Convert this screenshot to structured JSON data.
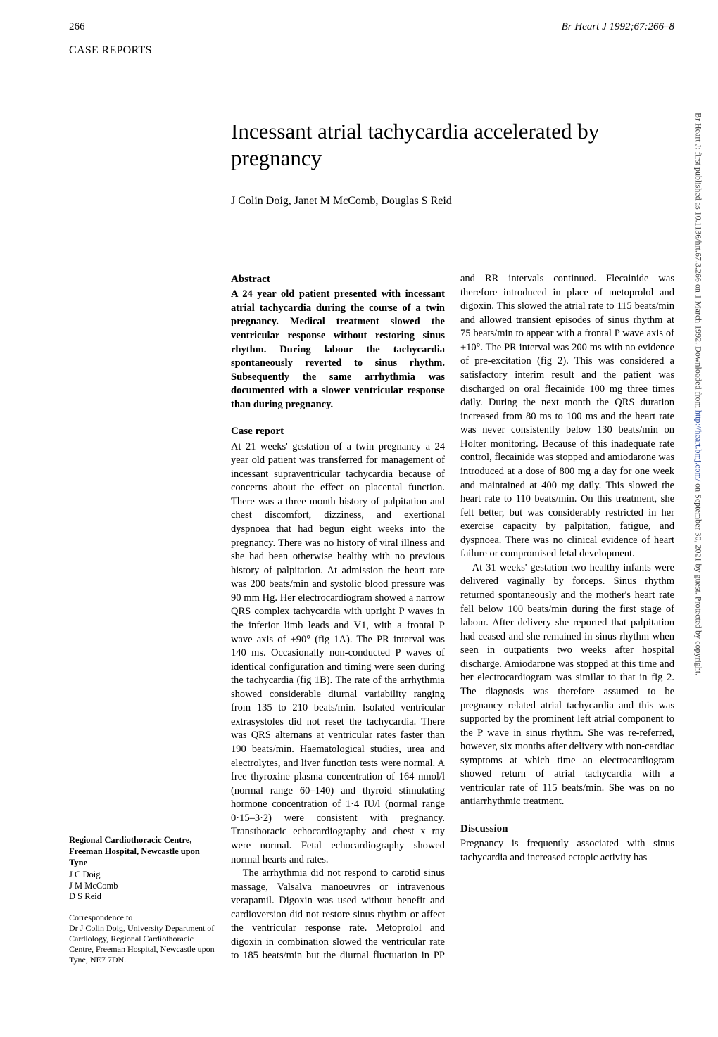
{
  "header": {
    "page_number": "266",
    "journal_citation": "Br Heart J 1992;67:266–8"
  },
  "section_label": "CASE REPORTS",
  "title": "Incessant atrial tachycardia accelerated by pregnancy",
  "authors": "J Colin Doig, Janet M McComb, Douglas S Reid",
  "abstract_heading": "Abstract",
  "abstract_text": "A 24 year old patient presented with incessant atrial tachycardia during the course of a twin pregnancy. Medical treatment slowed the ventricular response without restoring sinus rhythm. During labour the tachycardia spontaneously reverted to sinus rhythm. Subsequently the same arrhythmia was documented with a slower ventricular response than during pregnancy.",
  "case_heading": "Case report",
  "case_p1": "At 21 weeks' gestation of a twin pregnancy a 24 year old patient was transferred for management of incessant supraventricular tachycardia because of concerns about the effect on placental function. There was a three month history of palpitation and chest discomfort, dizziness, and exertional dyspnoea that had begun eight weeks into the pregnancy. There was no history of viral illness and she had been otherwise healthy with no previous history of palpitation. At admission the heart rate was 200 beats/min and systolic blood pressure was 90 mm Hg. Her electrocardiogram showed a narrow QRS complex tachycardia with upright P waves in the inferior limb leads and V1, with a frontal P wave axis of +90° (fig 1A). The PR interval was 140 ms. Occasionally non-conducted P waves of identical configuration and timing were seen during the tachycardia (fig 1B). The rate of the arrhythmia showed considerable diurnal variability ranging from 135 to 210 beats/min. Isolated ventricular extrasystoles did not reset the tachycardia. There was QRS alternans at ventricular rates faster than 190 beats/min. Haematological studies, urea and electrolytes, and liver function tests were normal. A free thyroxine plasma concentration of 164 nmol/l (normal range 60–140) and thyroid stimulating hormone concentration of 1·4 IU/l (normal range 0·15–3·2) were consistent with pregnancy. Transthoracic echocardiography and chest x ray were normal. Fetal echocardiography showed normal hearts and rates.",
  "case_p2": "The arrhythmia did not respond to carotid sinus massage, Valsalva manoeuvres or intravenous verapamil. Digoxin was used without benefit and cardioversion did not restore sinus rhythm or affect the ventricular response rate. Metoprolol and digoxin in combination slowed the ventricular rate to 185 beats/min but the diurnal fluctuation in PP and RR intervals continued. Flecainide was therefore introduced in place of metoprolol and digoxin. This slowed the atrial rate to 115 beats/min and allowed transient episodes of sinus rhythm at 75 beats/min to appear with a frontal P wave axis of +10°. The PR interval was 200 ms with no evidence of pre-excitation (fig 2). This was considered a satisfactory interim result and the patient was discharged on oral flecainide 100 mg three times daily. During the next month the QRS duration increased from 80 ms to 100 ms and the heart rate was never consistently below 130 beats/min on Holter monitoring. Because of this inadequate rate control, flecainide was stopped and amiodarone was introduced at a dose of 800 mg a day for one week and maintained at 400 mg daily. This slowed the heart rate to 110 beats/min. On this treatment, she felt better, but was considerably restricted in her exercise capacity by palpitation, fatigue, and dyspnoea. There was no clinical evidence of heart failure or compromised fetal development.",
  "case_p3": "At 31 weeks' gestation two healthy infants were delivered vaginally by forceps. Sinus rhythm returned spontaneously and the mother's heart rate fell below 100 beats/min during the first stage of labour. After delivery she reported that palpitation had ceased and she remained in sinus rhythm when seen in outpatients two weeks after hospital discharge. Amiodarone was stopped at this time and her electrocardiogram was similar to that in fig 2. The diagnosis was therefore assumed to be pregnancy related atrial tachycardia and this was supported by the prominent left atrial component to the P wave in sinus rhythm. She was re-referred, however, six months after delivery with non-cardiac symptoms at which time an electrocardiogram showed return of atrial tachycardia with a ventricular rate of 115 beats/min. She was on no antiarrhythmic treatment.",
  "discussion_heading": "Discussion",
  "discussion_p1": "Pregnancy is frequently associated with sinus tachycardia and increased ectopic activity has",
  "sidebar": {
    "affiliation": "Regional Cardiothoracic Centre, Freeman Hospital, Newcastle upon Tyne",
    "affil_authors": "J C Doig\nJ M McComb\nD S Reid",
    "correspondence": "Correspondence to\nDr J Colin Doig, University Department of Cardiology, Regional Cardiothoracic Centre, Freeman Hospital, Newcastle upon Tyne, NE7 7DN."
  },
  "watermark": {
    "prefix": "Br Heart J: first published as 10.1136/hrt.67.3.266 on 1 March 1992. Downloaded from ",
    "link_text": "http://heart.bmj.com/",
    "suffix": " on September 30, 2021 by guest. Protected by copyright."
  }
}
